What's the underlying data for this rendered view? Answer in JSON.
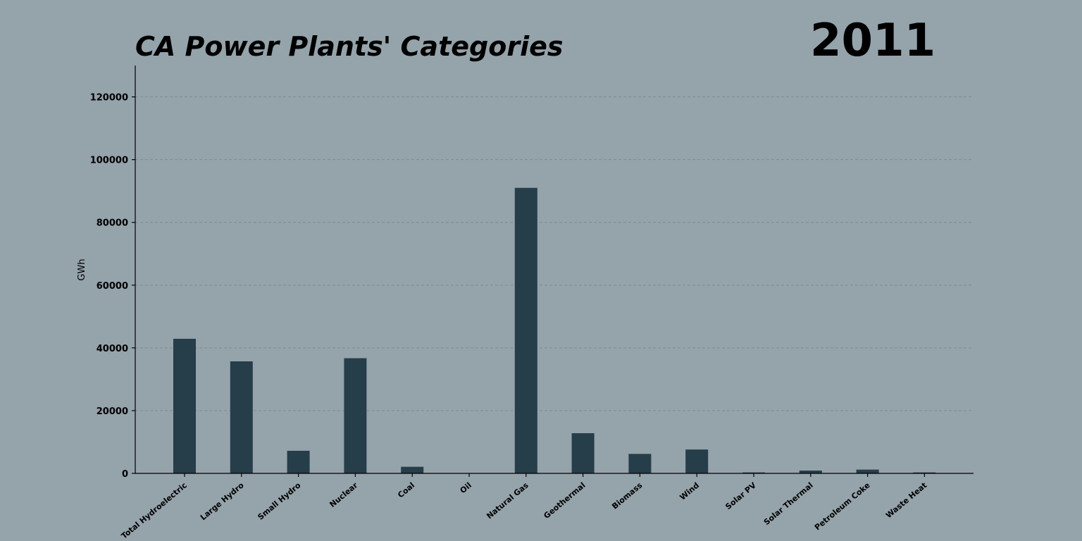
{
  "chart_data": {
    "type": "bar",
    "title": "CA Power Plants' Categories",
    "year_label": "2011",
    "xlabel": "",
    "ylabel": "GWh",
    "ylim": [
      0,
      130000
    ],
    "yticks": [
      0,
      20000,
      40000,
      60000,
      80000,
      100000,
      120000
    ],
    "grid": true,
    "categories": [
      "Total  Hydroelectric",
      "Large Hydro",
      "Small Hydro",
      "Nuclear",
      "Coal",
      "Oil",
      "Natural Gas",
      "Geothermal",
      "Biomass",
      "Wind",
      "Solar PV",
      "Solar Thermal",
      "Petroleum Coke",
      "Waste Heat"
    ],
    "values": [
      42900,
      35700,
      7200,
      36700,
      2100,
      30,
      91000,
      12800,
      6200,
      7600,
      300,
      900,
      1200,
      300
    ],
    "colors": {
      "bar": "#263d4a",
      "background": "#95a3ab"
    }
  }
}
